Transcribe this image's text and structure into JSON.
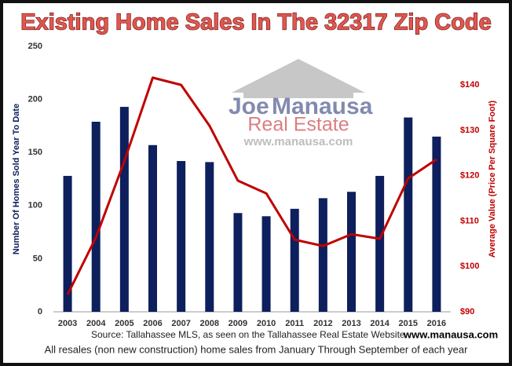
{
  "chart_data": {
    "type": "bar_line",
    "title": "Existing Home Sales In The 32317 Zip Code",
    "categories": [
      "2003",
      "2004",
      "2005",
      "2006",
      "2007",
      "2008",
      "2009",
      "2010",
      "2011",
      "2012",
      "2013",
      "2014",
      "2015",
      "2016"
    ],
    "series": [
      {
        "type": "bar",
        "color": "#0d1f5c",
        "values": [
          128,
          179,
          193,
          157,
          142,
          141,
          93,
          90,
          97,
          107,
          113,
          128,
          183,
          165
        ]
      },
      {
        "type": "line",
        "axis": "y2",
        "color": "#c00000",
        "values": [
          93.8,
          106.4,
          123.2,
          141.6,
          140,
          131,
          118.9,
          116.1,
          105.9,
          104.5,
          107.1,
          106.1,
          119.4,
          123.6
        ]
      }
    ],
    "ylim": [
      0,
      250
    ],
    "yticks": [
      0,
      50,
      100,
      150,
      200,
      250
    ],
    "y2lim": [
      90,
      148.5
    ],
    "y2ticks": [
      {
        "value": 90,
        "label": "$90"
      },
      {
        "value": 100,
        "label": "$100"
      },
      {
        "value": 110,
        "label": "$110"
      },
      {
        "value": 120,
        "label": "$120"
      },
      {
        "value": 130,
        "label": "$130"
      },
      {
        "value": 140,
        "label": "$140"
      }
    ],
    "ylabel": "Number Of Homes Sold Year To Date",
    "y2label": "Average Value (Price Per Square Foot)",
    "watermark": [
      "Joe",
      "Manausa",
      "Real Estate",
      "www.manausa.com"
    ],
    "source": "Source: Tallahassee MLS, as seen on the Tallahassee Real Estate Website",
    "source_link": "www.manausa.com",
    "note": "All resales (non new construction) home sales from January Through September of each year"
  }
}
